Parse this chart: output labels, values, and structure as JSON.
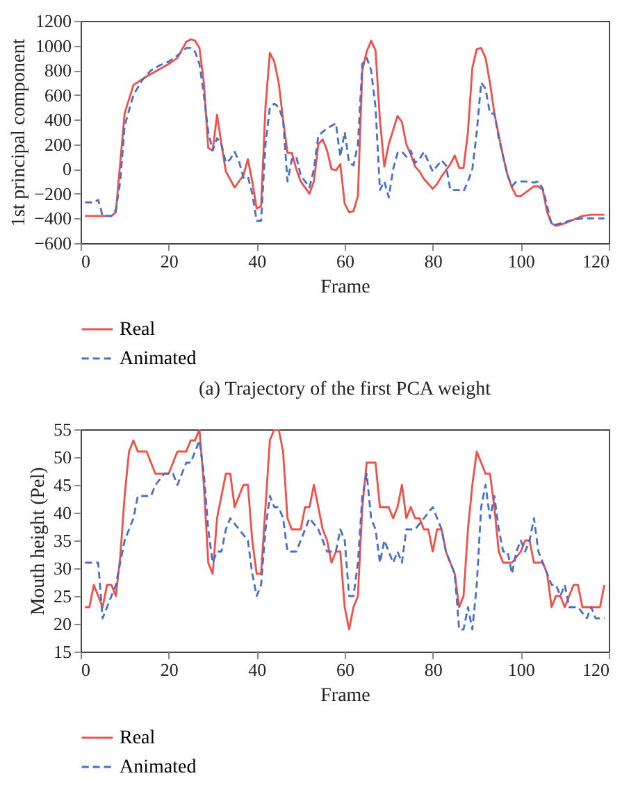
{
  "chart_data": [
    {
      "type": "line",
      "xlabel": "Frame",
      "ylabel": "1st principal component",
      "annotations": [
        "(a)  Trajectory of the first PCA weight"
      ],
      "xlim": [
        0,
        120
      ],
      "xticks": [
        0,
        20,
        40,
        60,
        80,
        100,
        120
      ],
      "ylim": [
        -600,
        1200
      ],
      "yticks": [
        {
          "value": -600,
          "label": "−600"
        },
        {
          "value": -400,
          "label": "−400"
        },
        {
          "value": -200,
          "label": "−200"
        },
        0,
        200,
        400,
        600,
        800,
        1000,
        1200
      ],
      "grid": false,
      "legend": "bottom",
      "marker": "none",
      "series": [
        {
          "name": "Real",
          "color": "#f0504a",
          "line_style": "solid",
          "x": [
            1,
            7,
            8,
            10,
            12,
            15,
            20,
            22,
            24,
            25,
            26,
            27,
            28,
            29,
            30,
            31,
            32,
            33,
            35,
            37,
            38,
            39,
            40,
            41,
            42,
            43,
            44,
            45,
            46,
            47,
            48,
            49,
            50,
            52,
            53,
            54,
            55,
            56,
            57,
            58,
            59,
            60,
            61,
            62,
            63,
            64,
            65,
            66,
            67,
            68,
            69,
            70,
            72,
            73,
            74,
            75,
            76,
            77,
            78,
            80,
            81,
            82,
            84,
            85,
            86,
            87,
            88,
            89,
            90,
            91,
            92,
            93,
            94,
            96,
            97,
            98,
            99,
            100,
            103,
            104,
            105,
            106,
            107,
            108,
            110,
            114,
            116,
            119
          ],
          "values": [
            -380,
            -380,
            -350,
            450,
            680,
            750,
            850,
            900,
            1030,
            1050,
            1040,
            980,
            700,
            170,
            150,
            440,
            200,
            -20,
            -150,
            -50,
            80,
            -100,
            -320,
            -300,
            500,
            940,
            870,
            700,
            400,
            130,
            130,
            0,
            -100,
            -200,
            -100,
            200,
            240,
            150,
            0,
            -10,
            40,
            -280,
            -350,
            -340,
            -220,
            800,
            950,
            1040,
            960,
            400,
            20,
            200,
            430,
            380,
            200,
            120,
            20,
            -20,
            -80,
            -160,
            -120,
            -60,
            40,
            110,
            10,
            10,
            300,
            820,
            970,
            980,
            900,
            700,
            450,
            100,
            -50,
            -150,
            -220,
            -220,
            -140,
            -140,
            -170,
            -350,
            -440,
            -460,
            -440,
            -380,
            -370,
            -370
          ]
        },
        {
          "name": "Animated",
          "color": "#4a6fc8",
          "line_style": "dashed",
          "x": [
            1,
            3,
            4,
            5,
            7,
            8,
            9,
            10,
            12,
            14,
            16,
            18,
            20,
            22,
            24,
            25,
            26,
            27,
            28,
            29,
            30,
            31,
            32,
            33,
            34,
            35,
            36,
            37,
            38,
            39,
            40,
            41,
            42,
            43,
            44,
            45,
            46,
            47,
            48,
            49,
            50,
            52,
            53,
            54,
            56,
            58,
            59,
            60,
            61,
            62,
            63,
            64,
            65,
            66,
            67,
            68,
            69,
            70,
            71,
            72,
            73,
            74,
            75,
            76,
            77,
            78,
            80,
            82,
            83,
            84,
            86,
            87,
            88,
            89,
            90,
            91,
            92,
            93,
            94,
            95,
            97,
            98,
            99,
            101,
            103,
            104,
            105,
            106,
            107,
            108,
            110,
            112,
            114,
            119
          ],
          "values": [
            -270,
            -270,
            -250,
            -380,
            -380,
            -330,
            -100,
            350,
            600,
            720,
            800,
            840,
            870,
            920,
            980,
            980,
            950,
            850,
            600,
            300,
            150,
            250,
            200,
            50,
            80,
            140,
            60,
            -70,
            -60,
            -200,
            -420,
            -420,
            200,
            500,
            530,
            500,
            400,
            -100,
            80,
            100,
            -50,
            -150,
            0,
            270,
            330,
            370,
            100,
            300,
            50,
            30,
            200,
            850,
            900,
            800,
            500,
            -170,
            -100,
            -230,
            0,
            130,
            140,
            100,
            150,
            50,
            80,
            140,
            -20,
            70,
            30,
            -170,
            -170,
            -180,
            -100,
            0,
            300,
            700,
            650,
            450,
            450,
            250,
            -50,
            -140,
            -100,
            -100,
            -110,
            -100,
            -160,
            -300,
            -450,
            -450,
            -430,
            -410,
            -400,
            -400
          ]
        }
      ]
    },
    {
      "type": "line",
      "xlabel": "Frame",
      "ylabel": "Mouth height (Pel)",
      "xlim": [
        0,
        120
      ],
      "xticks": [
        0,
        20,
        40,
        60,
        80,
        100,
        120
      ],
      "ylim": [
        15,
        55
      ],
      "yticks": [
        15,
        20,
        25,
        30,
        35,
        40,
        45,
        50,
        55
      ],
      "grid": false,
      "legend": "bottom",
      "marker": "none",
      "series": [
        {
          "name": "Real",
          "color": "#f0504a",
          "line_style": "solid",
          "x": [
            1,
            2,
            3,
            4,
            5,
            6,
            7,
            8,
            9,
            10,
            11,
            12,
            13,
            15,
            17,
            19,
            20,
            22,
            24,
            25,
            26,
            27,
            28,
            29,
            30,
            31,
            32,
            33,
            34,
            35,
            37,
            38,
            39,
            40,
            41,
            42,
            43,
            44,
            45,
            46,
            47,
            48,
            50,
            51,
            52,
            53,
            54,
            55,
            56,
            57,
            58,
            59,
            60,
            61,
            62,
            63,
            64,
            65,
            67,
            68,
            70,
            71,
            72,
            73,
            74,
            75,
            76,
            77,
            78,
            79,
            80,
            81,
            82,
            83,
            84,
            85,
            86,
            87,
            88,
            89,
            90,
            91,
            92,
            93,
            94,
            95,
            96,
            98,
            100,
            101,
            102,
            103,
            105,
            106,
            107,
            108,
            109,
            110,
            111,
            112,
            113,
            114,
            118,
            119
          ],
          "values": [
            23,
            23,
            27,
            25,
            23,
            27,
            27,
            25,
            32,
            43,
            51,
            53,
            51,
            51,
            47,
            47,
            47,
            51,
            51,
            53,
            53,
            55,
            45,
            31,
            29,
            39,
            43,
            47,
            47,
            41,
            45,
            45,
            35,
            29,
            29,
            41,
            53,
            55,
            55,
            51,
            39,
            37,
            37,
            41,
            41,
            45,
            41,
            37,
            35,
            31,
            33,
            33,
            23,
            19,
            23,
            25,
            41,
            49,
            49,
            41,
            41,
            39,
            41,
            45,
            39,
            41,
            39,
            39,
            37,
            37,
            33,
            37,
            37,
            33,
            31,
            29,
            23,
            25,
            37,
            45,
            51,
            49,
            47,
            47,
            41,
            33,
            31,
            31,
            33,
            35,
            35,
            31,
            31,
            29,
            23,
            25,
            25,
            23,
            25,
            27,
            27,
            23,
            23,
            27
          ]
        },
        {
          "name": "Animated",
          "color": "#4a6fc8",
          "line_style": "dashed",
          "x": [
            1,
            4,
            5,
            6,
            7,
            8,
            10,
            11,
            12,
            13,
            16,
            17,
            19,
            21,
            22,
            24,
            25,
            26,
            27,
            28,
            29,
            30,
            31,
            32,
            33,
            34,
            36,
            38,
            39,
            40,
            41,
            42,
            43,
            44,
            45,
            46,
            47,
            49,
            51,
            52,
            54,
            56,
            57,
            58,
            59,
            60,
            61,
            62,
            63,
            64,
            65,
            66,
            67,
            68,
            69,
            71,
            72,
            73,
            74,
            76,
            78,
            80,
            81,
            82,
            83,
            84,
            85,
            86,
            87,
            88,
            89,
            90,
            91,
            92,
            93,
            94,
            95,
            96,
            97,
            98,
            99,
            100,
            101,
            102,
            103,
            104,
            105,
            106,
            107,
            108,
            109,
            110,
            111,
            113,
            115,
            116,
            117,
            119
          ],
          "values": [
            31,
            31,
            21,
            23,
            25,
            27,
            35,
            37,
            39,
            43,
            43,
            45,
            47,
            47,
            45,
            49,
            49,
            51,
            53,
            47,
            37,
            31,
            33,
            33,
            37,
            39,
            37,
            35,
            29,
            25,
            27,
            37,
            43,
            41,
            41,
            39,
            33,
            33,
            37,
            39,
            37,
            33,
            33,
            33,
            37,
            35,
            25,
            25,
            31,
            43,
            47,
            39,
            37,
            31,
            35,
            31,
            33,
            31,
            37,
            37,
            39,
            41,
            39,
            37,
            33,
            31,
            29,
            19,
            19,
            23,
            19,
            27,
            41,
            45,
            39,
            43,
            37,
            33,
            33,
            29,
            33,
            35,
            33,
            35,
            39,
            33,
            31,
            29,
            27,
            27,
            25,
            27,
            23,
            23,
            21,
            23,
            21,
            21
          ]
        }
      ]
    }
  ]
}
